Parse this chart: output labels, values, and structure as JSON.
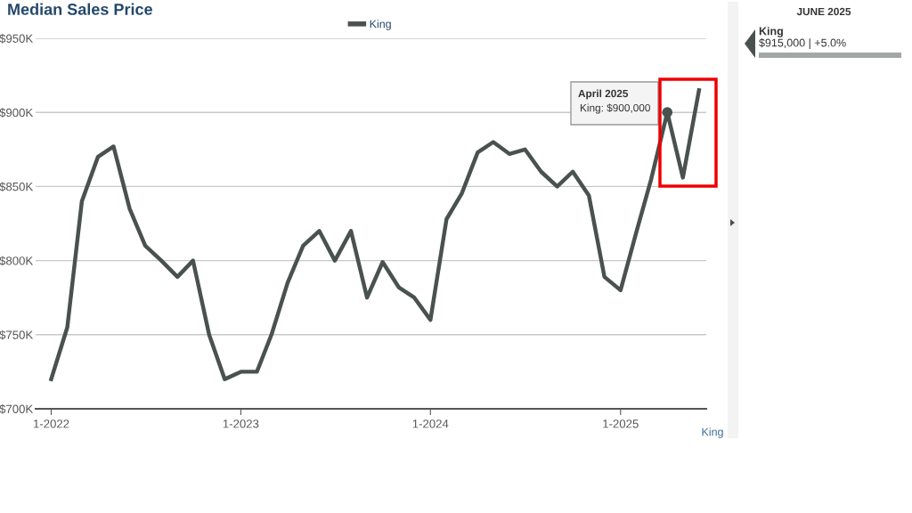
{
  "chart_data": {
    "type": "line",
    "title": "Median Sales Price",
    "x": [
      "2022-01",
      "2022-02",
      "2022-03",
      "2022-04",
      "2022-05",
      "2022-06",
      "2022-07",
      "2022-08",
      "2022-09",
      "2022-10",
      "2022-11",
      "2022-12",
      "2023-01",
      "2023-02",
      "2023-03",
      "2023-04",
      "2023-05",
      "2023-06",
      "2023-07",
      "2023-08",
      "2023-09",
      "2023-10",
      "2023-11",
      "2023-12",
      "2024-01",
      "2024-02",
      "2024-03",
      "2024-04",
      "2024-05",
      "2024-06",
      "2024-07",
      "2024-08",
      "2024-09",
      "2024-10",
      "2024-11",
      "2024-12",
      "2025-01",
      "2025-02",
      "2025-03",
      "2025-04",
      "2025-05",
      "2025-06"
    ],
    "series": [
      {
        "name": "King",
        "color": "#4a524f",
        "values": [
          720000,
          755000,
          840000,
          870000,
          877000,
          835000,
          810000,
          800000,
          789000,
          800000,
          750000,
          720000,
          725000,
          725000,
          750000,
          785000,
          810000,
          820000,
          800000,
          820000,
          775000,
          799000,
          782000,
          775000,
          760000,
          828000,
          845000,
          873000,
          880000,
          872000,
          875000,
          860000,
          850000,
          860000,
          844000,
          789000,
          780000,
          820000,
          855000,
          900000,
          856000,
          915000
        ]
      },
      {
        "type": "scatter",
        "marker": "circle",
        "color": "#4a524f",
        "x": [
          "2025-04"
        ],
        "values": [
          900000
        ]
      }
    ],
    "xlim": [
      "2021-12-02",
      "2025-06-15"
    ],
    "xticks": [
      {
        "value": "2022-01",
        "label": "1-2022"
      },
      {
        "value": "2023-01",
        "label": "1-2023"
      },
      {
        "value": "2024-01",
        "label": "1-2024"
      },
      {
        "value": "2025-01",
        "label": "1-2025"
      }
    ],
    "ylim": [
      700000,
      950000
    ],
    "yticks": [
      {
        "value": 700000,
        "label": "$700K"
      },
      {
        "value": 750000,
        "label": "$750K"
      },
      {
        "value": 800000,
        "label": "$800K"
      },
      {
        "value": 850000,
        "label": "$850K"
      },
      {
        "value": 900000,
        "label": "$900K"
      },
      {
        "value": 950000,
        "label": "$950K"
      }
    ],
    "grid": "y",
    "legend": "top",
    "marker": "none",
    "line_style": "solid",
    "annotations": [
      "April 2025",
      "King: $900,000",
      "JUNE 2025",
      "King",
      "$915,000 | +5.0%",
      "King"
    ]
  }
}
